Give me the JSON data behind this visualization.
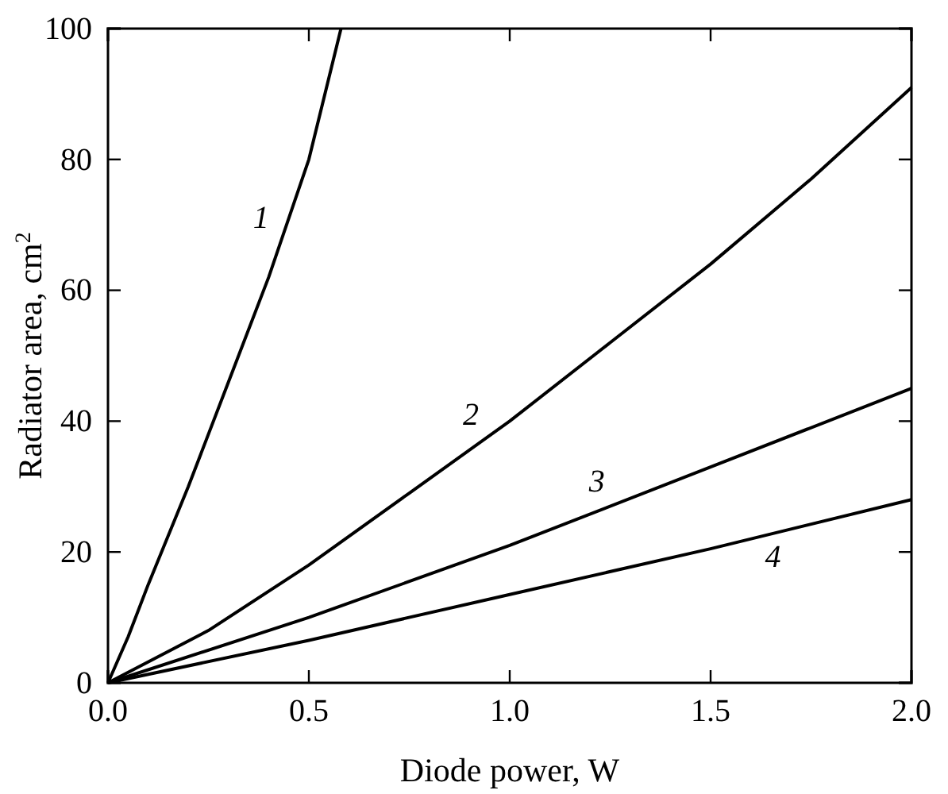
{
  "chart_data": {
    "type": "line",
    "xlabel": "Diode power, W",
    "ylabel": "Radiator area, cm$^{2}$",
    "xlim": [
      0,
      2
    ],
    "ylim": [
      0,
      100
    ],
    "xticks": [
      {
        "value": 0,
        "label": "0.0"
      },
      {
        "value": 0.5,
        "label": "0.5"
      },
      {
        "value": 1,
        "label": "1.0"
      },
      {
        "value": 1.5,
        "label": "1.5"
      },
      {
        "value": 2,
        "label": "2.0"
      }
    ],
    "yticks": [
      0,
      20,
      40,
      60,
      80,
      100
    ],
    "grid": false,
    "marker": "none",
    "line_style": "solid",
    "series": [
      {
        "name": "1",
        "color": "#000000",
        "x": [
          0,
          0.05,
          0.1,
          0.2,
          0.3,
          0.4,
          0.5,
          0.58
        ],
        "values": [
          0,
          7,
          15,
          30,
          46,
          62,
          80,
          100
        ]
      },
      {
        "name": "2",
        "color": "#000000",
        "x": [
          0,
          0.25,
          0.5,
          0.75,
          1,
          1.25,
          1.5,
          1.75,
          2
        ],
        "values": [
          0,
          8,
          18,
          29,
          40,
          52,
          64,
          77,
          91
        ]
      },
      {
        "name": "3",
        "color": "#000000",
        "x": [
          0,
          0.5,
          1,
          1.5,
          2
        ],
        "values": [
          0,
          10,
          21,
          33,
          45
        ]
      },
      {
        "name": "4",
        "color": "#000000",
        "x": [
          0,
          0.5,
          1,
          1.5,
          2
        ],
        "values": [
          0,
          6.5,
          13.5,
          20.5,
          28
        ]
      }
    ]
  }
}
